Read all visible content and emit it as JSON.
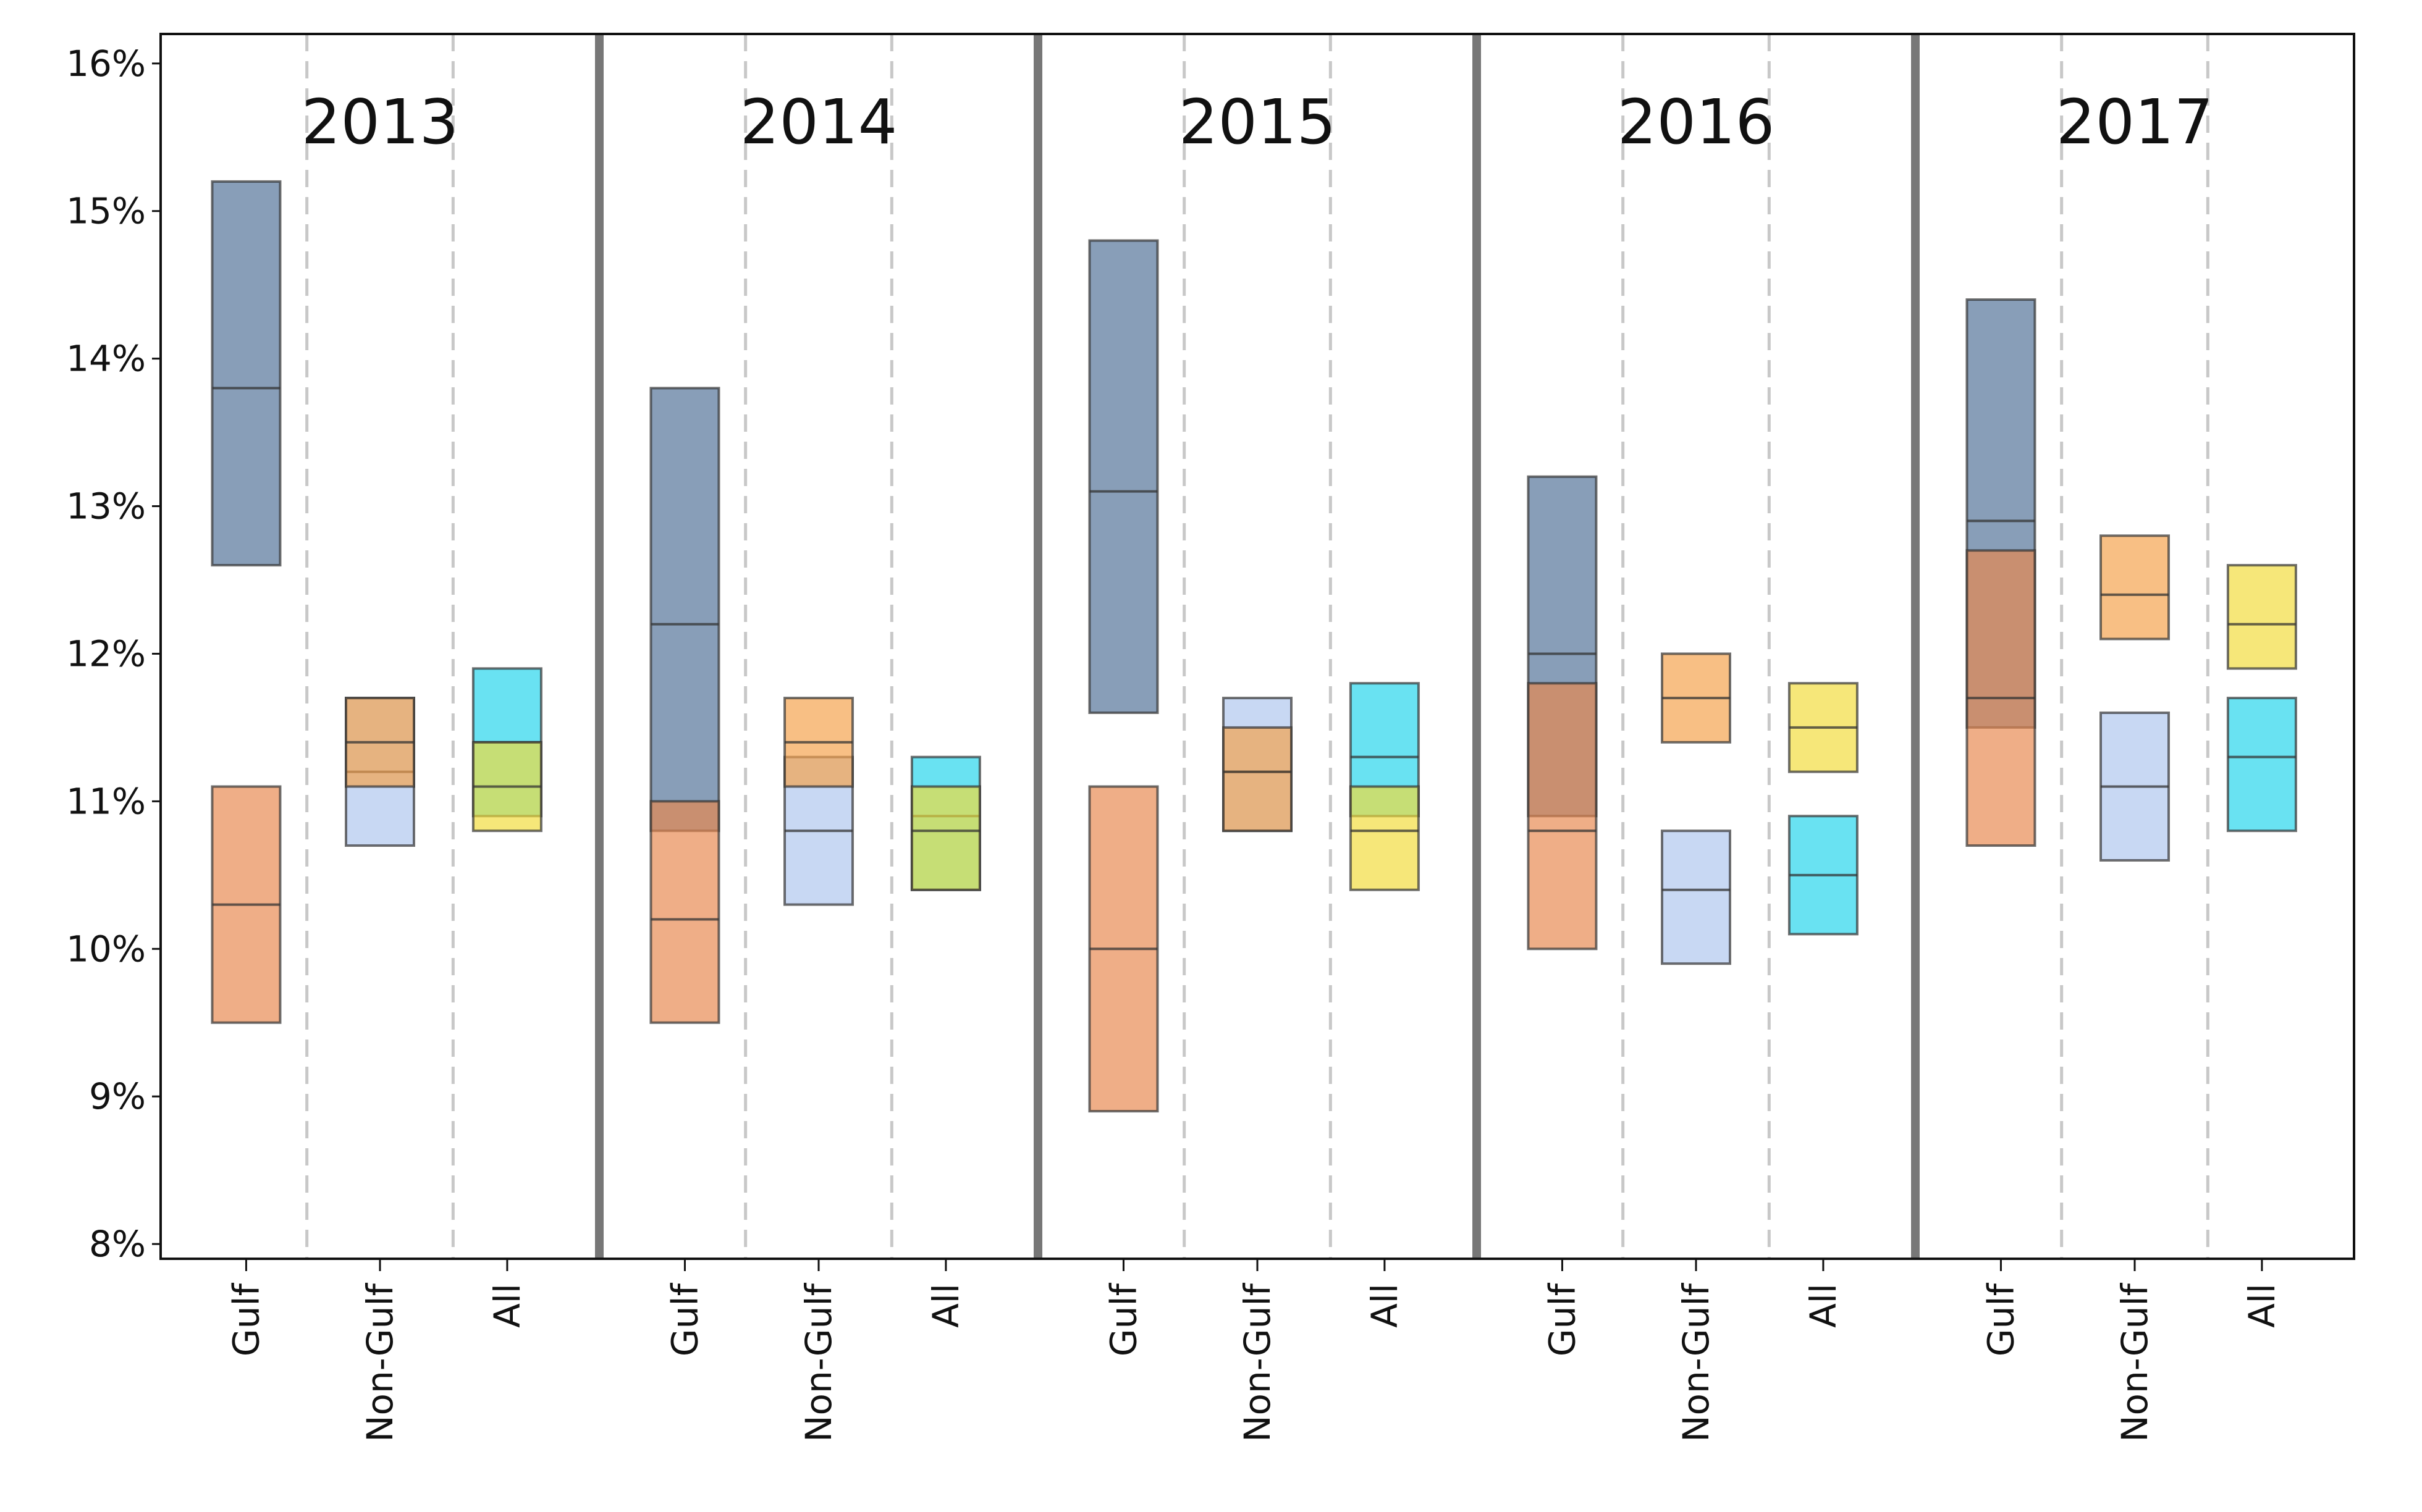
{
  "chart_data": {
    "type": "range_box",
    "ylim": [
      7.9,
      16.2
    ],
    "yticks": [
      {
        "value": 8,
        "label": "8%"
      },
      {
        "value": 9,
        "label": "9%"
      },
      {
        "value": 10,
        "label": "10%"
      },
      {
        "value": 11,
        "label": "11%"
      },
      {
        "value": 12,
        "label": "12%"
      },
      {
        "value": 13,
        "label": "13%"
      },
      {
        "value": 14,
        "label": "14%"
      },
      {
        "value": 15,
        "label": "15%"
      },
      {
        "value": 16,
        "label": "16%"
      }
    ],
    "panels": [
      {
        "title": "2013",
        "groups": [
          {
            "label": "Gulf",
            "boxes": [
              {
                "color": "#4f7096",
                "low": 12.6,
                "mid": 13.8,
                "high": 15.2
              },
              {
                "color": "#e8884e",
                "low": 9.5,
                "mid": 10.3,
                "high": 11.1
              }
            ]
          },
          {
            "label": "Non-Gulf",
            "boxes": [
              {
                "color": "#aec6ee",
                "low": 10.7,
                "mid": 11.2,
                "high": 11.7
              },
              {
                "color": "#f4a14a",
                "low": 11.1,
                "mid": 11.4,
                "high": 11.7
              }
            ]
          },
          {
            "label": "All",
            "boxes": [
              {
                "color": "#22d4ec",
                "low": 10.9,
                "mid": 11.4,
                "high": 11.9
              },
              {
                "color": "#f2dc3a",
                "low": 10.8,
                "mid": 11.1,
                "high": 11.4
              }
            ]
          }
        ]
      },
      {
        "title": "2014",
        "groups": [
          {
            "label": "Gulf",
            "boxes": [
              {
                "color": "#4f7096",
                "low": 10.8,
                "mid": 12.2,
                "high": 13.8
              },
              {
                "color": "#e8884e",
                "low": 9.5,
                "mid": 10.2,
                "high": 11.0
              }
            ]
          },
          {
            "label": "Non-Gulf",
            "boxes": [
              {
                "color": "#aec6ee",
                "low": 10.3,
                "mid": 10.8,
                "high": 11.3
              },
              {
                "color": "#f4a14a",
                "low": 11.1,
                "mid": 11.4,
                "high": 11.7
              }
            ]
          },
          {
            "label": "All",
            "boxes": [
              {
                "color": "#22d4ec",
                "low": 10.4,
                "mid": 10.9,
                "high": 11.3
              },
              {
                "color": "#f2dc3a",
                "low": 10.4,
                "mid": 10.8,
                "high": 11.1
              }
            ]
          }
        ]
      },
      {
        "title": "2015",
        "groups": [
          {
            "label": "Gulf",
            "boxes": [
              {
                "color": "#4f7096",
                "low": 11.6,
                "mid": 13.1,
                "high": 14.8
              },
              {
                "color": "#e8884e",
                "low": 8.9,
                "mid": 10.0,
                "high": 11.1
              }
            ]
          },
          {
            "label": "Non-Gulf",
            "boxes": [
              {
                "color": "#aec6ee",
                "low": 10.8,
                "mid": 11.2,
                "high": 11.7
              },
              {
                "color": "#f4a14a",
                "low": 10.8,
                "mid": 11.2,
                "high": 11.5
              }
            ]
          },
          {
            "label": "All",
            "boxes": [
              {
                "color": "#22d4ec",
                "low": 10.9,
                "mid": 11.3,
                "high": 11.8
              },
              {
                "color": "#f2dc3a",
                "low": 10.4,
                "mid": 10.8,
                "high": 11.1
              }
            ]
          }
        ]
      },
      {
        "title": "2016",
        "groups": [
          {
            "label": "Gulf",
            "boxes": [
              {
                "color": "#4f7096",
                "low": 10.9,
                "mid": 12.0,
                "high": 13.2
              },
              {
                "color": "#e8884e",
                "low": 10.0,
                "mid": 10.8,
                "high": 11.8
              }
            ]
          },
          {
            "label": "Non-Gulf",
            "boxes": [
              {
                "color": "#aec6ee",
                "low": 9.9,
                "mid": 10.4,
                "high": 10.8
              },
              {
                "color": "#f4a14a",
                "low": 11.4,
                "mid": 11.7,
                "high": 12.0
              }
            ]
          },
          {
            "label": "All",
            "boxes": [
              {
                "color": "#22d4ec",
                "low": 10.1,
                "mid": 10.5,
                "high": 10.9
              },
              {
                "color": "#f2dc3a",
                "low": 11.2,
                "mid": 11.5,
                "high": 11.8
              }
            ]
          }
        ]
      },
      {
        "title": "2017",
        "groups": [
          {
            "label": "Gulf",
            "boxes": [
              {
                "color": "#4f7096",
                "low": 11.5,
                "mid": 12.9,
                "high": 14.4
              },
              {
                "color": "#e8884e",
                "low": 10.7,
                "mid": 11.7,
                "high": 12.7
              }
            ]
          },
          {
            "label": "Non-Gulf",
            "boxes": [
              {
                "color": "#aec6ee",
                "low": 10.6,
                "mid": 11.1,
                "high": 11.6
              },
              {
                "color": "#f4a14a",
                "low": 12.1,
                "mid": 12.4,
                "high": 12.8
              }
            ]
          },
          {
            "label": "All",
            "boxes": [
              {
                "color": "#22d4ec",
                "low": 10.8,
                "mid": 11.3,
                "high": 11.7
              },
              {
                "color": "#f2dc3a",
                "low": 11.9,
                "mid": 12.2,
                "high": 12.6
              }
            ]
          }
        ]
      }
    ]
  }
}
